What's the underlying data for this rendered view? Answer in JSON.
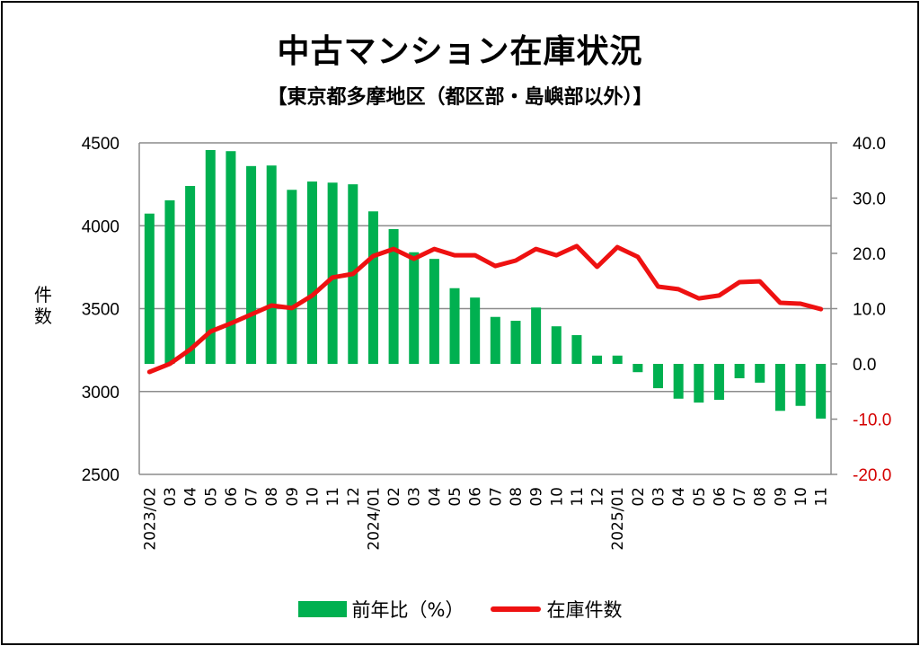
{
  "chart_data": {
    "type": "bar+line",
    "title": "中古マンション在庫状況",
    "subtitle": "【東京都多摩地区（都区部・島嶼部以外）】",
    "ylabel_left": "件数",
    "ylim_left": [
      2500,
      4500
    ],
    "yticks_left": [
      "4500",
      "4000",
      "3500",
      "3000",
      "2500"
    ],
    "ylim_right": [
      -20,
      40
    ],
    "yticks_right": [
      "40.0",
      "30.0",
      "20.0",
      "10.0",
      "0.0",
      "-10.0",
      "-20.0"
    ],
    "grid": true,
    "legend_position": "bottom",
    "categories": [
      "2023/02",
      "03",
      "04",
      "05",
      "06",
      "07",
      "08",
      "09",
      "10",
      "11",
      "12",
      "2024/01",
      "02",
      "03",
      "04",
      "05",
      "06",
      "07",
      "08",
      "09",
      "10",
      "11",
      "12",
      "2025/01",
      "02",
      "03",
      "04",
      "05",
      "06",
      "07",
      "08",
      "09",
      "10",
      "11"
    ],
    "series": [
      {
        "name": "前年比（%）",
        "type": "bar",
        "axis": "right",
        "color": "#00b050",
        "values": [
          27.2,
          29.6,
          32.2,
          38.7,
          38.5,
          35.8,
          35.9,
          31.5,
          33.0,
          32.8,
          32.5,
          27.6,
          24.4,
          20.2,
          19.0,
          13.7,
          12.0,
          8.5,
          7.8,
          10.2,
          6.8,
          5.2,
          1.5,
          1.5,
          -1.5,
          -4.4,
          -6.3,
          -7.0,
          -6.5,
          -2.6,
          -3.4,
          -8.5,
          -7.6,
          -9.9
        ]
      },
      {
        "name": "在庫件数",
        "type": "line",
        "axis": "left",
        "color": "#ee1111",
        "values": [
          3118,
          3167,
          3253,
          3362,
          3411,
          3465,
          3519,
          3503,
          3579,
          3688,
          3709,
          3817,
          3860,
          3801,
          3860,
          3822,
          3822,
          3757,
          3790,
          3860,
          3822,
          3877,
          3752,
          3871,
          3812,
          3633,
          3617,
          3562,
          3579,
          3660,
          3665,
          3535,
          3530,
          3497
        ]
      }
    ],
    "negative_tick_color": "#d40000"
  }
}
